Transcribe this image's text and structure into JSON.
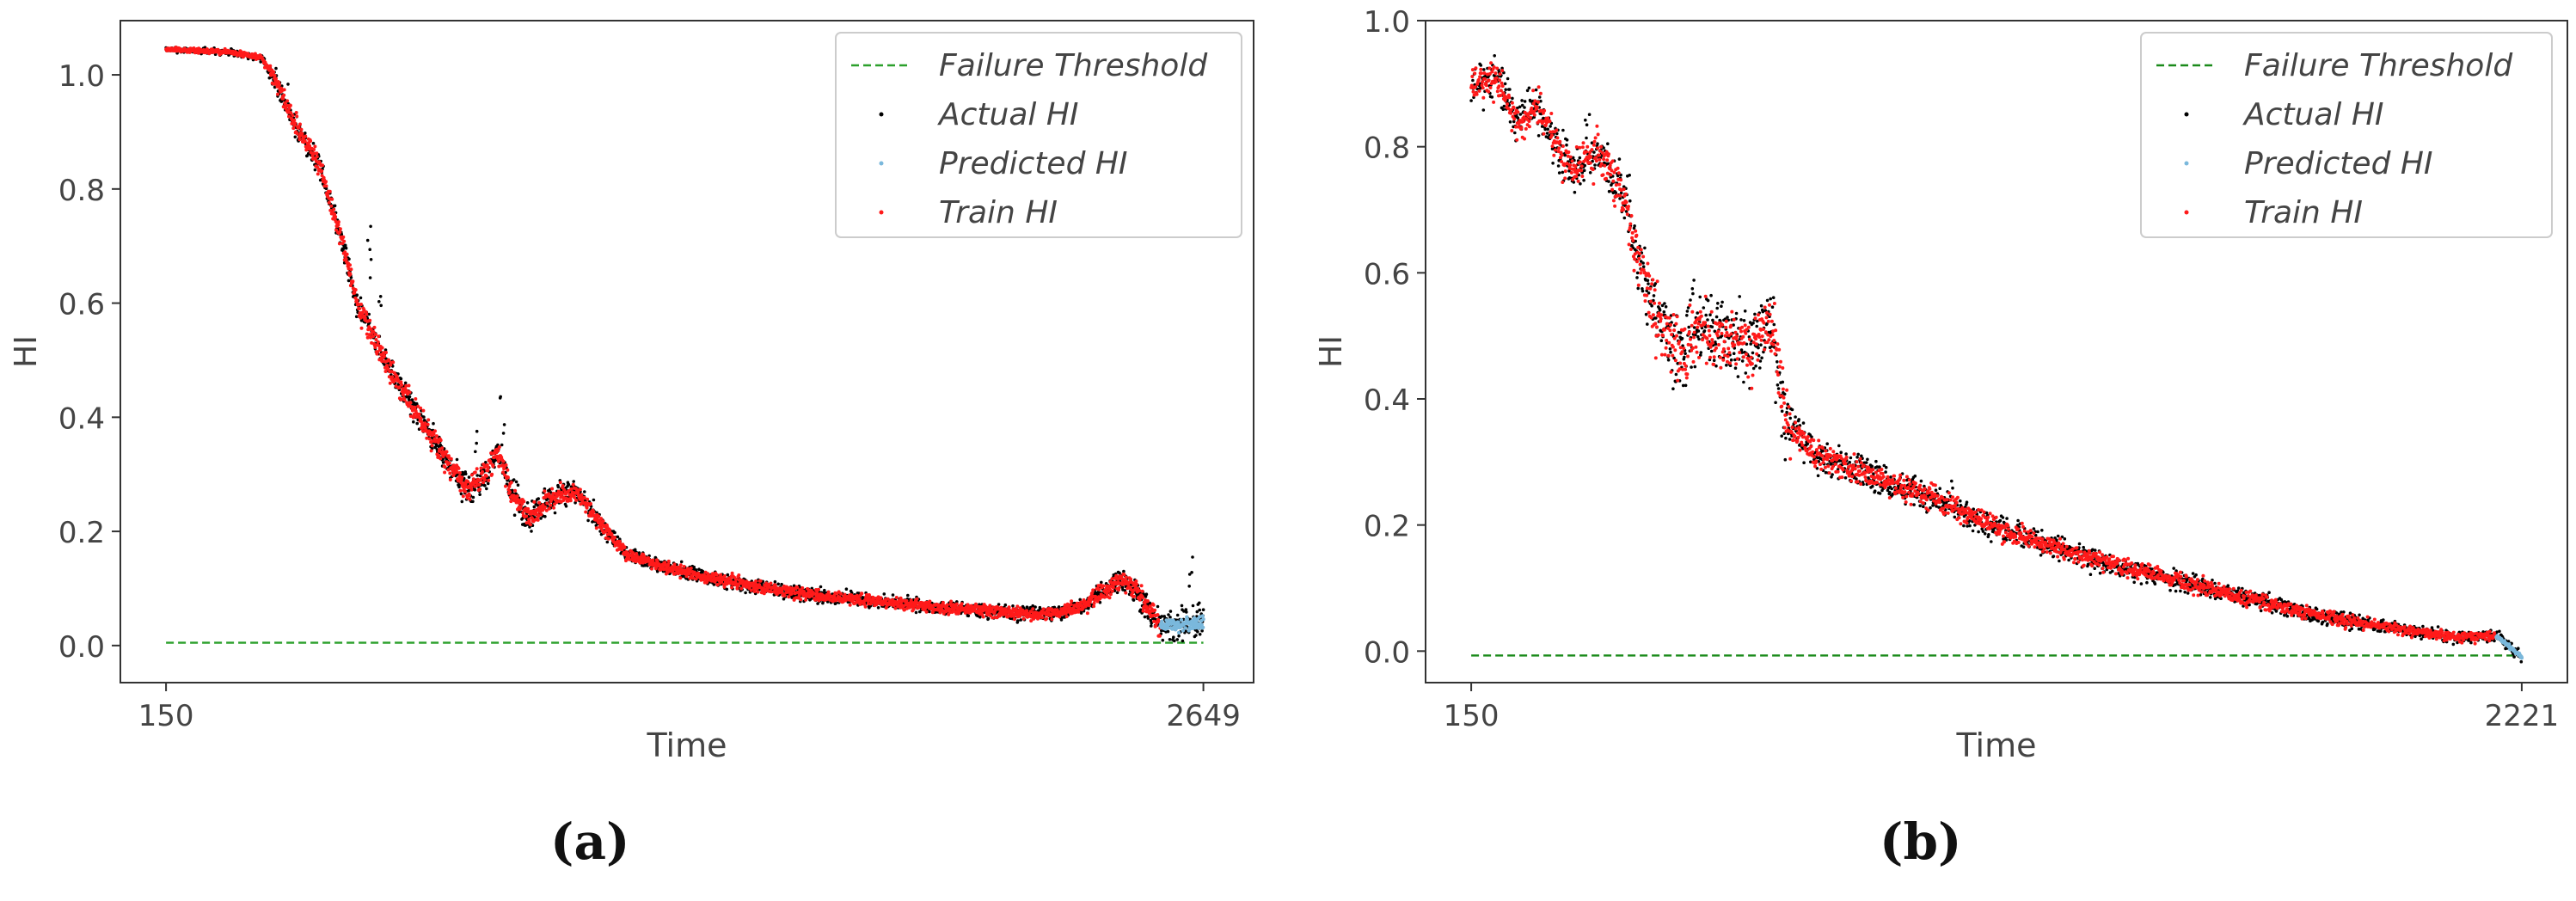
{
  "colors": {
    "threshold": "#2ca02c",
    "actual": "#000000",
    "predicted": "#7ab8dc",
    "train": "#ff1a1a",
    "axis": "#333333",
    "text": "#444444"
  },
  "chart_data": [
    {
      "type": "scatter",
      "panel": "(a)",
      "xlabel": "Time",
      "ylabel": "HI",
      "xlim": [
        40,
        2770
      ],
      "ylim": [
        -0.065,
        1.095
      ],
      "xticks": [
        150,
        2649
      ],
      "xtick_labels": [
        "150",
        "2649"
      ],
      "yticks": [
        0.0,
        0.2,
        0.4,
        0.6,
        0.8,
        1.0
      ],
      "ytick_labels": [
        "0.0",
        "0.2",
        "0.4",
        "0.6",
        "0.8",
        "1.0"
      ],
      "legend": [
        "Failure Threshold",
        "Actual HI",
        "Predicted HI",
        "Train HI"
      ],
      "legend_position": "top-right",
      "threshold": 0.005,
      "threshold_x": [
        150,
        2649
      ],
      "train_end": 2545,
      "seed": 7,
      "trend": [
        [
          150,
          1.045
        ],
        [
          300,
          1.04
        ],
        [
          380,
          1.03
        ],
        [
          420,
          0.98
        ],
        [
          470,
          0.9
        ],
        [
          520,
          0.84
        ],
        [
          570,
          0.72
        ],
        [
          610,
          0.6
        ],
        [
          650,
          0.54
        ],
        [
          700,
          0.47
        ],
        [
          760,
          0.4
        ],
        [
          820,
          0.33
        ],
        [
          880,
          0.27
        ],
        [
          920,
          0.3
        ],
        [
          950,
          0.34
        ],
        [
          980,
          0.27
        ],
        [
          1030,
          0.22
        ],
        [
          1080,
          0.26
        ],
        [
          1140,
          0.27
        ],
        [
          1200,
          0.21
        ],
        [
          1260,
          0.16
        ],
        [
          1340,
          0.14
        ],
        [
          1450,
          0.12
        ],
        [
          1600,
          0.1
        ],
        [
          1750,
          0.085
        ],
        [
          1900,
          0.075
        ],
        [
          2050,
          0.065
        ],
        [
          2150,
          0.06
        ],
        [
          2250,
          0.055
        ],
        [
          2320,
          0.06
        ],
        [
          2370,
          0.075
        ],
        [
          2420,
          0.1
        ],
        [
          2450,
          0.115
        ],
        [
          2480,
          0.1
        ],
        [
          2520,
          0.06
        ],
        [
          2545,
          0.035
        ],
        [
          2649,
          0.04
        ]
      ],
      "noise": [
        [
          150,
          0.004
        ],
        [
          380,
          0.006
        ],
        [
          420,
          0.02
        ],
        [
          1000,
          0.028
        ],
        [
          1260,
          0.012
        ],
        [
          2300,
          0.012
        ],
        [
          2400,
          0.018
        ],
        [
          2649,
          0.03
        ]
      ],
      "spikes": [
        [
          440,
          0.08
        ],
        [
          640,
          0.2
        ],
        [
          665,
          0.13
        ],
        [
          900,
          0.09
        ],
        [
          960,
          0.1
        ],
        [
          1180,
          0.06
        ],
        [
          2620,
          0.12
        ]
      ]
    },
    {
      "type": "scatter",
      "panel": "(b)",
      "xlabel": "Time",
      "ylabel": "HI",
      "xlim": [
        60,
        2311
      ],
      "ylim": [
        -0.05,
        1.0
      ],
      "xticks": [
        150,
        2221
      ],
      "xtick_labels": [
        "150",
        "2221"
      ],
      "yticks": [
        0.0,
        0.2,
        0.4,
        0.6,
        0.8,
        1.0
      ],
      "ytick_labels": [
        "0.0",
        "0.2",
        "0.4",
        "0.6",
        "0.8",
        "1.0"
      ],
      "legend": [
        "Failure Threshold",
        "Actual HI",
        "Predicted HI",
        "Train HI"
      ],
      "legend_position": "top-right",
      "threshold": -0.007,
      "threshold_x": [
        150,
        2221
      ],
      "train_end": 2170,
      "seed": 11,
      "trend": [
        [
          150,
          0.9
        ],
        [
          200,
          0.91
        ],
        [
          240,
          0.84
        ],
        [
          280,
          0.86
        ],
        [
          320,
          0.8
        ],
        [
          350,
          0.76
        ],
        [
          400,
          0.79
        ],
        [
          440,
          0.74
        ],
        [
          480,
          0.62
        ],
        [
          520,
          0.52
        ],
        [
          560,
          0.47
        ],
        [
          600,
          0.52
        ],
        [
          650,
          0.49
        ],
        [
          700,
          0.48
        ],
        [
          740,
          0.52
        ],
        [
          770,
          0.37
        ],
        [
          830,
          0.31
        ],
        [
          900,
          0.29
        ],
        [
          1000,
          0.26
        ],
        [
          1100,
          0.23
        ],
        [
          1200,
          0.19
        ],
        [
          1300,
          0.165
        ],
        [
          1400,
          0.14
        ],
        [
          1500,
          0.12
        ],
        [
          1600,
          0.1
        ],
        [
          1700,
          0.08
        ],
        [
          1800,
          0.06
        ],
        [
          1900,
          0.045
        ],
        [
          2000,
          0.032
        ],
        [
          2100,
          0.022
        ],
        [
          2170,
          0.025
        ],
        [
          2200,
          0.005
        ],
        [
          2221,
          -0.01
        ]
      ],
      "noise": [
        [
          150,
          0.03
        ],
        [
          450,
          0.04
        ],
        [
          520,
          0.06
        ],
        [
          760,
          0.06
        ],
        [
          800,
          0.025
        ],
        [
          1200,
          0.02
        ],
        [
          1700,
          0.014
        ],
        [
          2221,
          0.008
        ]
      ],
      "spikes": [
        [
          380,
          0.05
        ],
        [
          460,
          0.07
        ],
        [
          580,
          0.08
        ],
        [
          650,
          0.09
        ],
        [
          1100,
          0.04
        ]
      ]
    }
  ],
  "captions": [
    "(a)",
    "(b)"
  ]
}
